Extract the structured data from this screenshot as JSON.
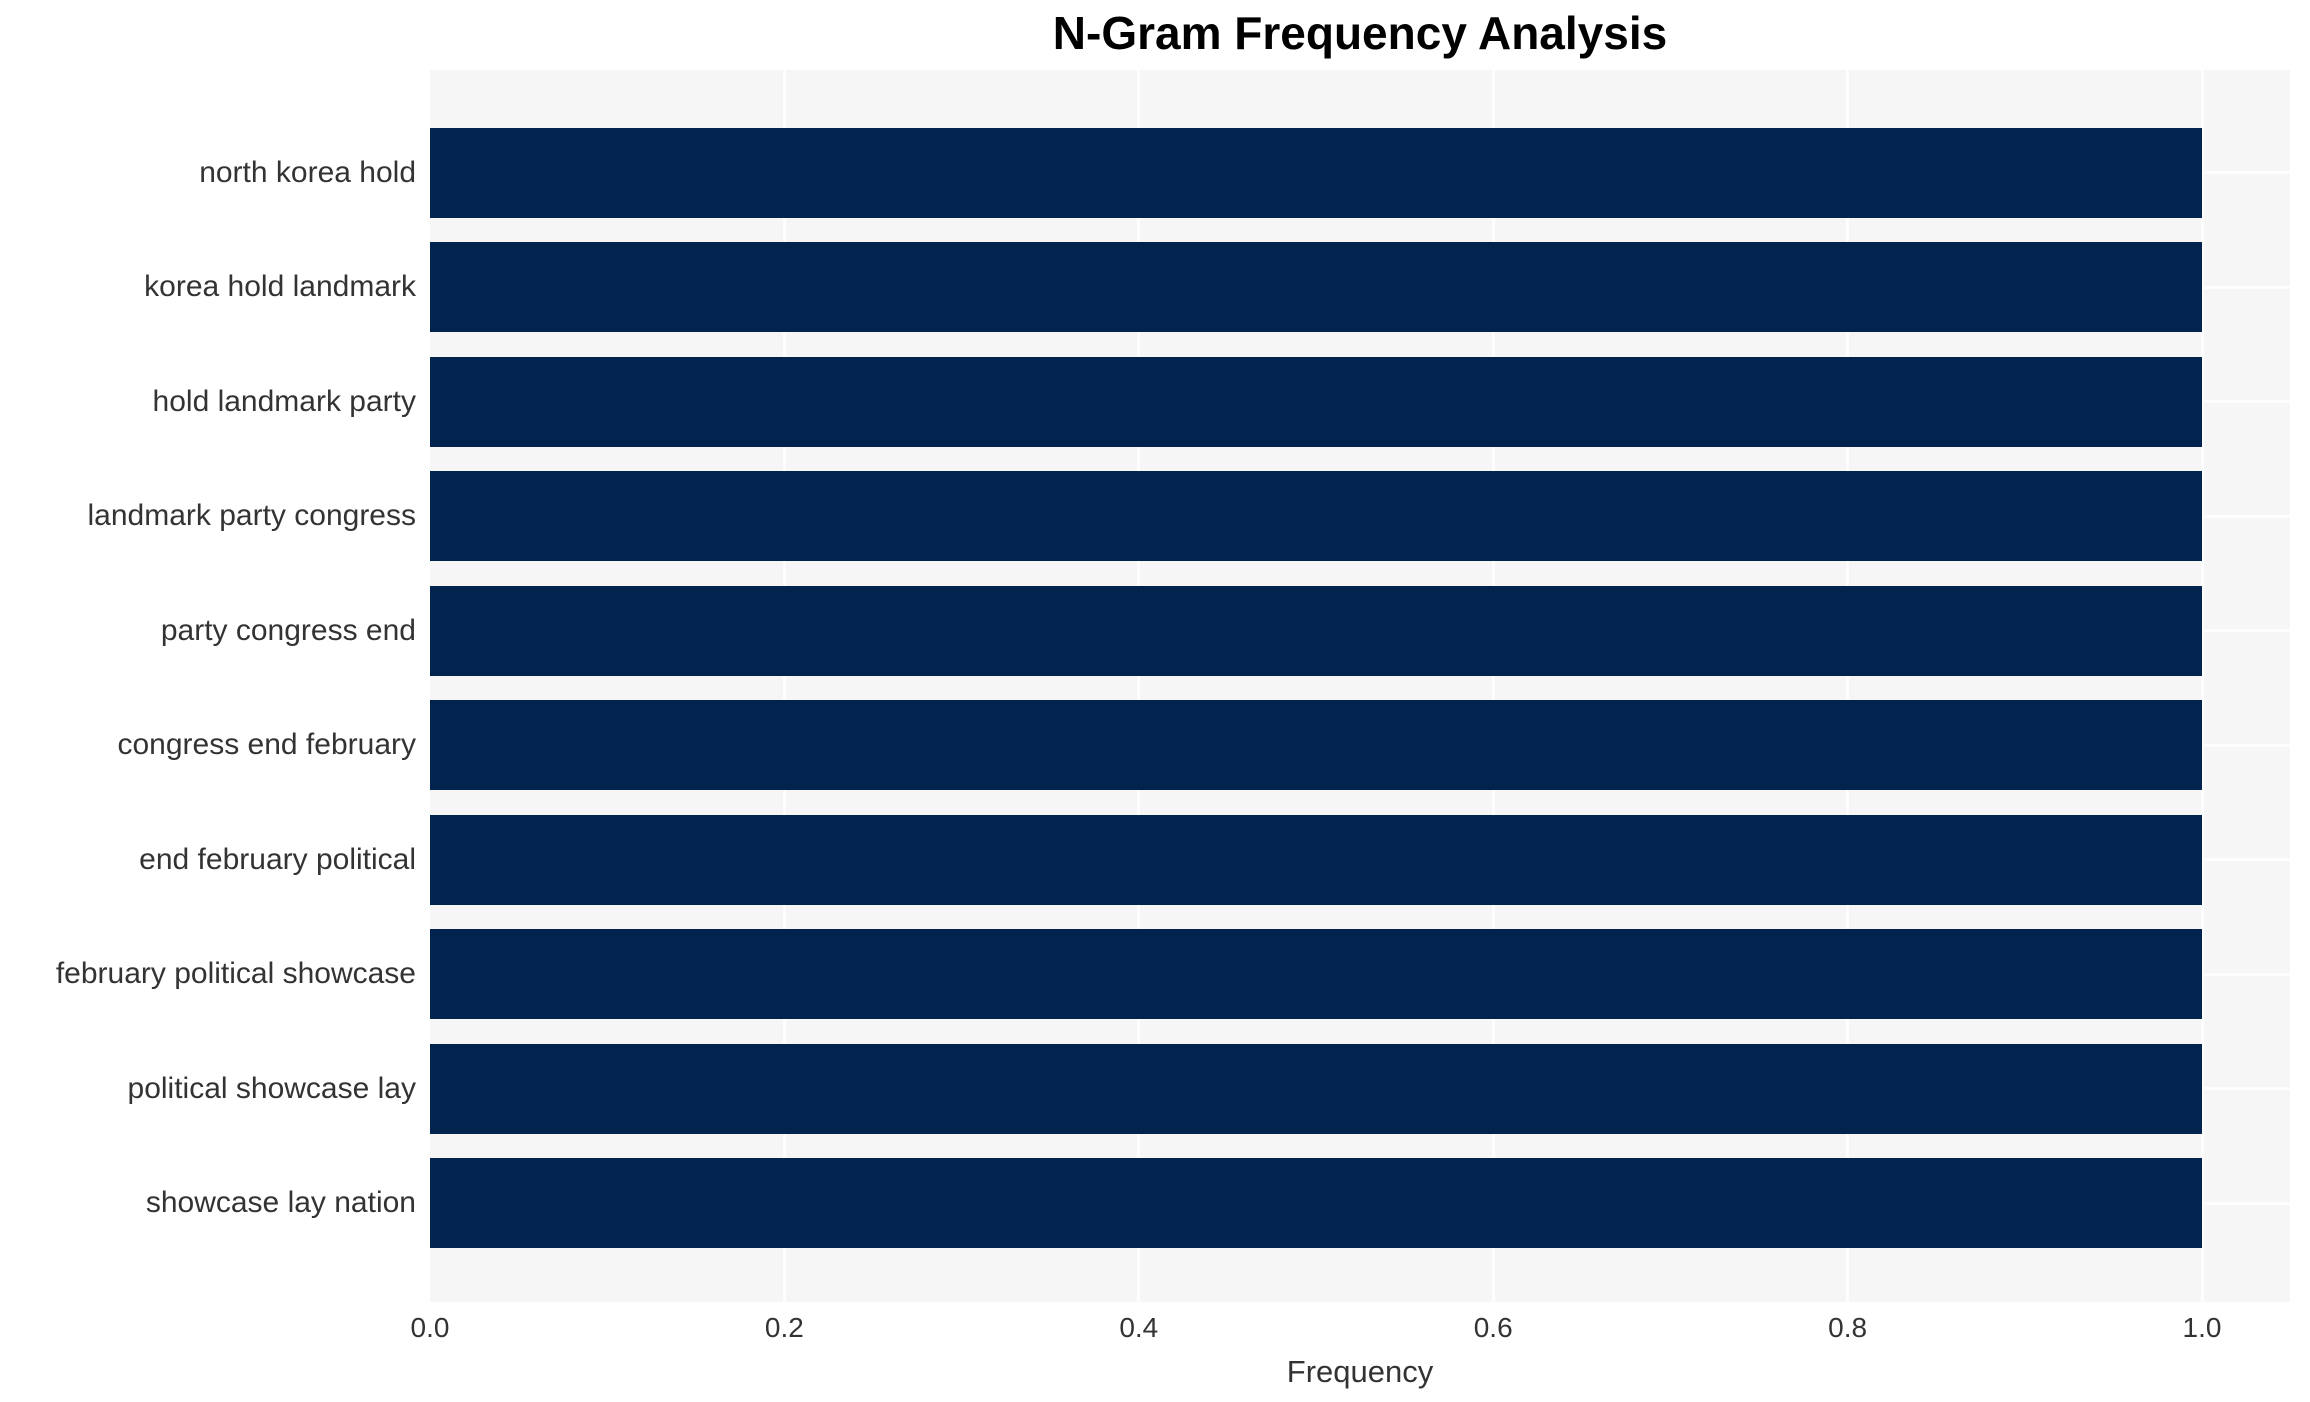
{
  "chart_data": {
    "type": "bar",
    "orientation": "horizontal",
    "title": "N-Gram Frequency Analysis",
    "xlabel": "Frequency",
    "ylabel": "",
    "categories": [
      "north korea hold",
      "korea hold landmark",
      "hold landmark party",
      "landmark party congress",
      "party congress end",
      "congress end february",
      "end february political",
      "february political showcase",
      "political showcase lay",
      "showcase lay nation"
    ],
    "values": [
      1.0,
      1.0,
      1.0,
      1.0,
      1.0,
      1.0,
      1.0,
      1.0,
      1.0,
      1.0
    ],
    "xlim": [
      0,
      1.05
    ],
    "xticks": [
      0,
      0.2,
      0.4,
      0.6,
      0.8,
      1.0
    ],
    "x_tick_labels": [
      "0.0",
      "0.2",
      "0.4",
      "0.6",
      "0.8",
      "1.0"
    ],
    "grid": true,
    "legend": false,
    "colors": {
      "bar": "#02234d",
      "plot_background": "#f6f6f7",
      "figure_background": "#ffffff",
      "gridline": "#fdfdfd",
      "tick_text": "#333333",
      "title_text": "#000000"
    }
  }
}
